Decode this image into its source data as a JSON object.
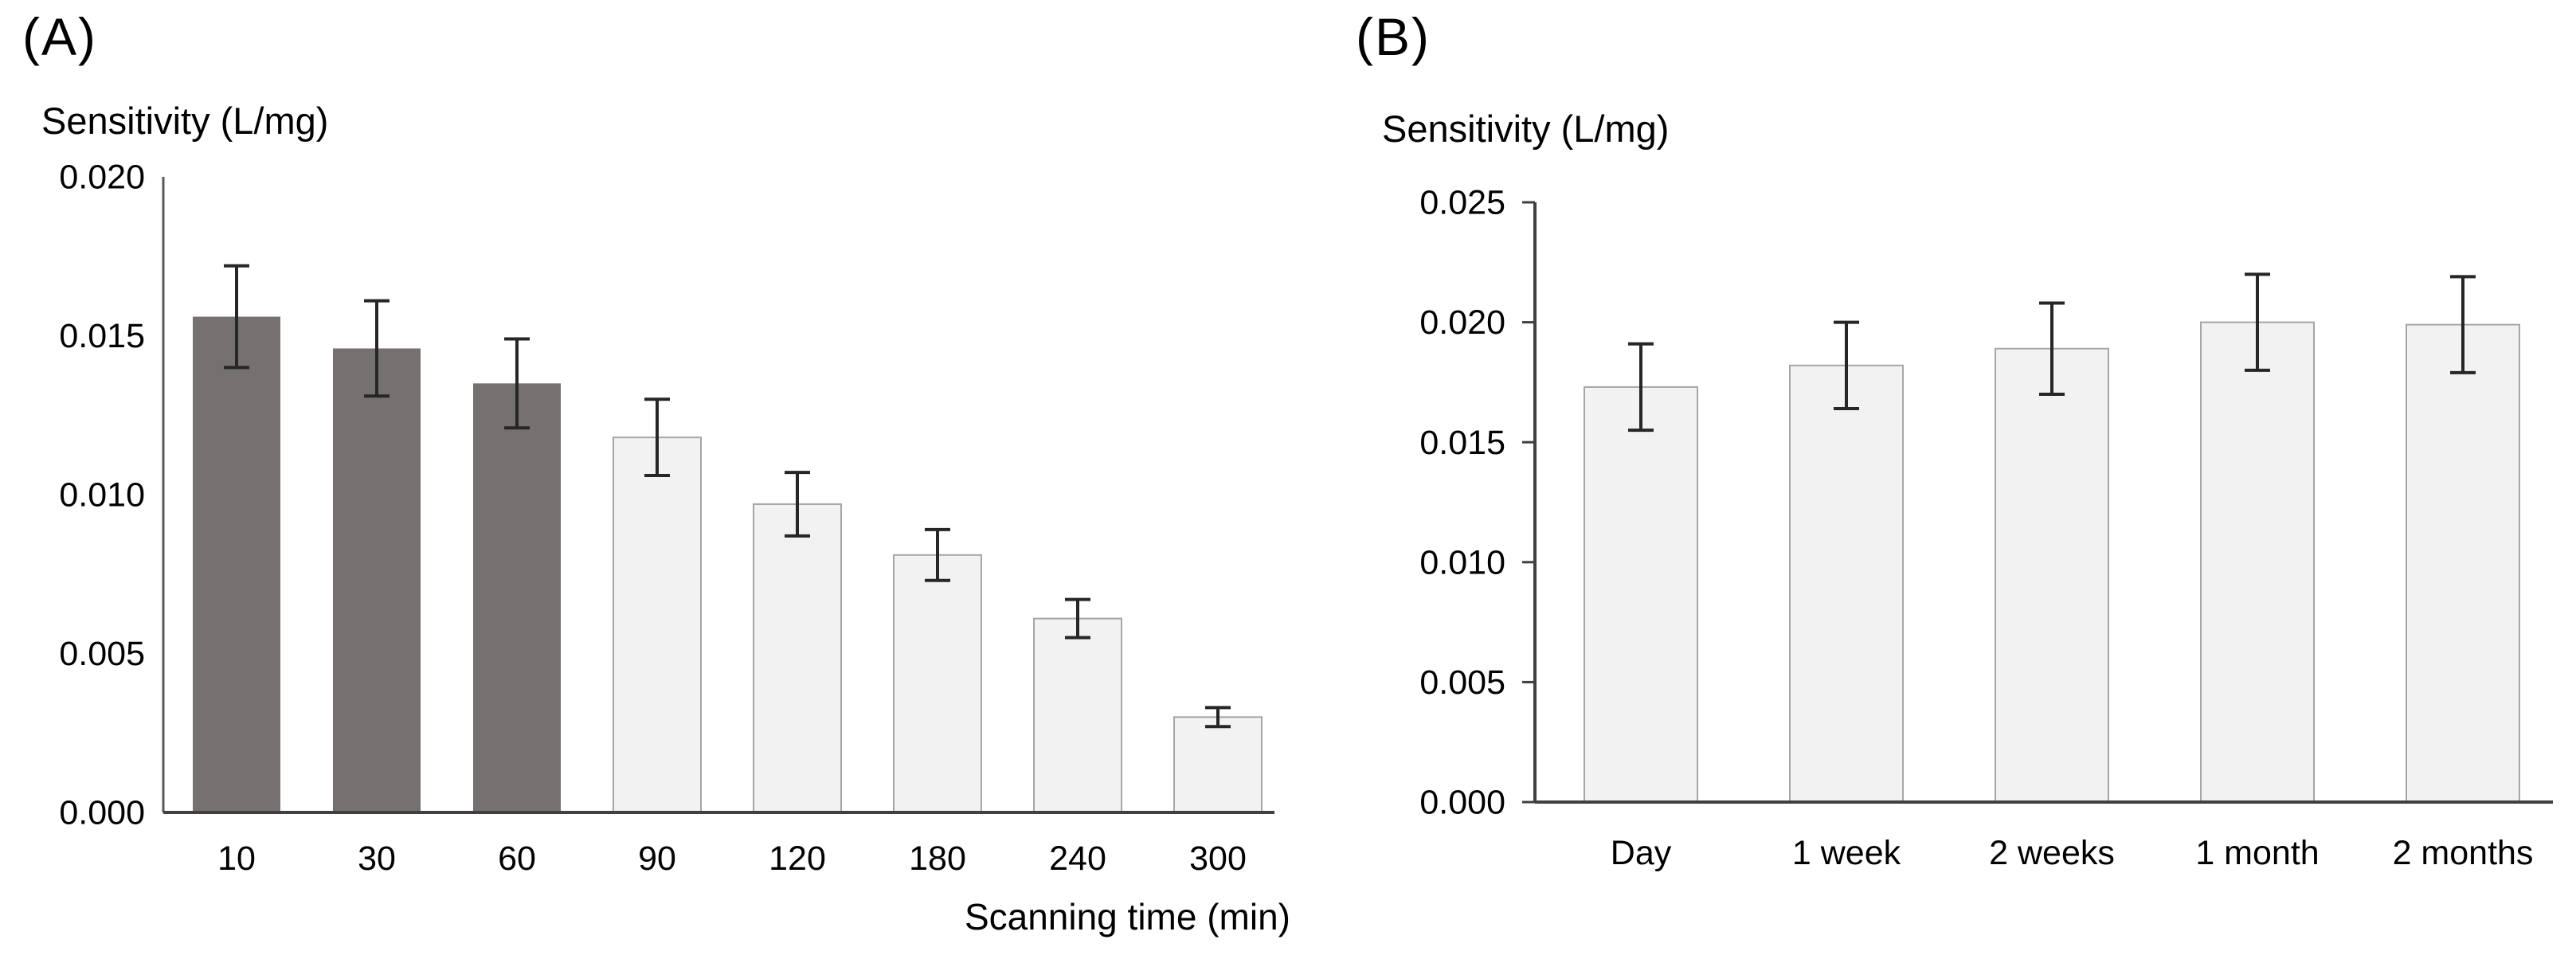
{
  "figure": {
    "background": "#ffffff"
  },
  "colors": {
    "dark_bar_fill": "#767171",
    "light_bar_fill": "#f2f2f2",
    "light_bar_border": "#a6a6a6",
    "error_bar": "#262626",
    "axis_line": "#595959",
    "baseline": "#404040",
    "text": "#000000"
  },
  "chart_data": [
    {
      "type": "bar",
      "panel_label": "(A)",
      "y_axis_title": "Sensitivity (L/mg)",
      "x_axis_title": "Scanning time (min)",
      "categories": [
        "10",
        "30",
        "60",
        "90",
        "120",
        "180",
        "240",
        "300"
      ],
      "values": [
        0.0156,
        0.0146,
        0.0135,
        0.0118,
        0.0097,
        0.0081,
        0.0061,
        0.003
      ],
      "errors": [
        0.0016,
        0.0015,
        0.0014,
        0.0012,
        0.001,
        0.0008,
        0.0006,
        0.0003
      ],
      "bar_styles": [
        "dark",
        "dark",
        "dark",
        "light",
        "light",
        "light",
        "light",
        "light"
      ],
      "ylim": [
        0,
        0.02
      ],
      "yticks": [
        "0.000",
        "0.005",
        "0.010",
        "0.015",
        "0.020"
      ],
      "grid": false,
      "legend": "none",
      "y_tick_marks": false
    },
    {
      "type": "bar",
      "panel_label": "(B)",
      "y_axis_title": "Sensitivity (L/mg)",
      "categories": [
        "Day",
        "1 week",
        "2 weeks",
        "1 month",
        "2 months"
      ],
      "values": [
        0.0173,
        0.0182,
        0.0189,
        0.02,
        0.0199
      ],
      "errors": [
        0.0018,
        0.0018,
        0.0019,
        0.002,
        0.002
      ],
      "bar_styles": [
        "light",
        "light",
        "light",
        "light",
        "light"
      ],
      "ylim": [
        0,
        0.025
      ],
      "yticks": [
        "0.000",
        "0.005",
        "0.010",
        "0.015",
        "0.020",
        "0.025"
      ],
      "grid": false,
      "legend": "none",
      "y_tick_marks": true
    }
  ]
}
